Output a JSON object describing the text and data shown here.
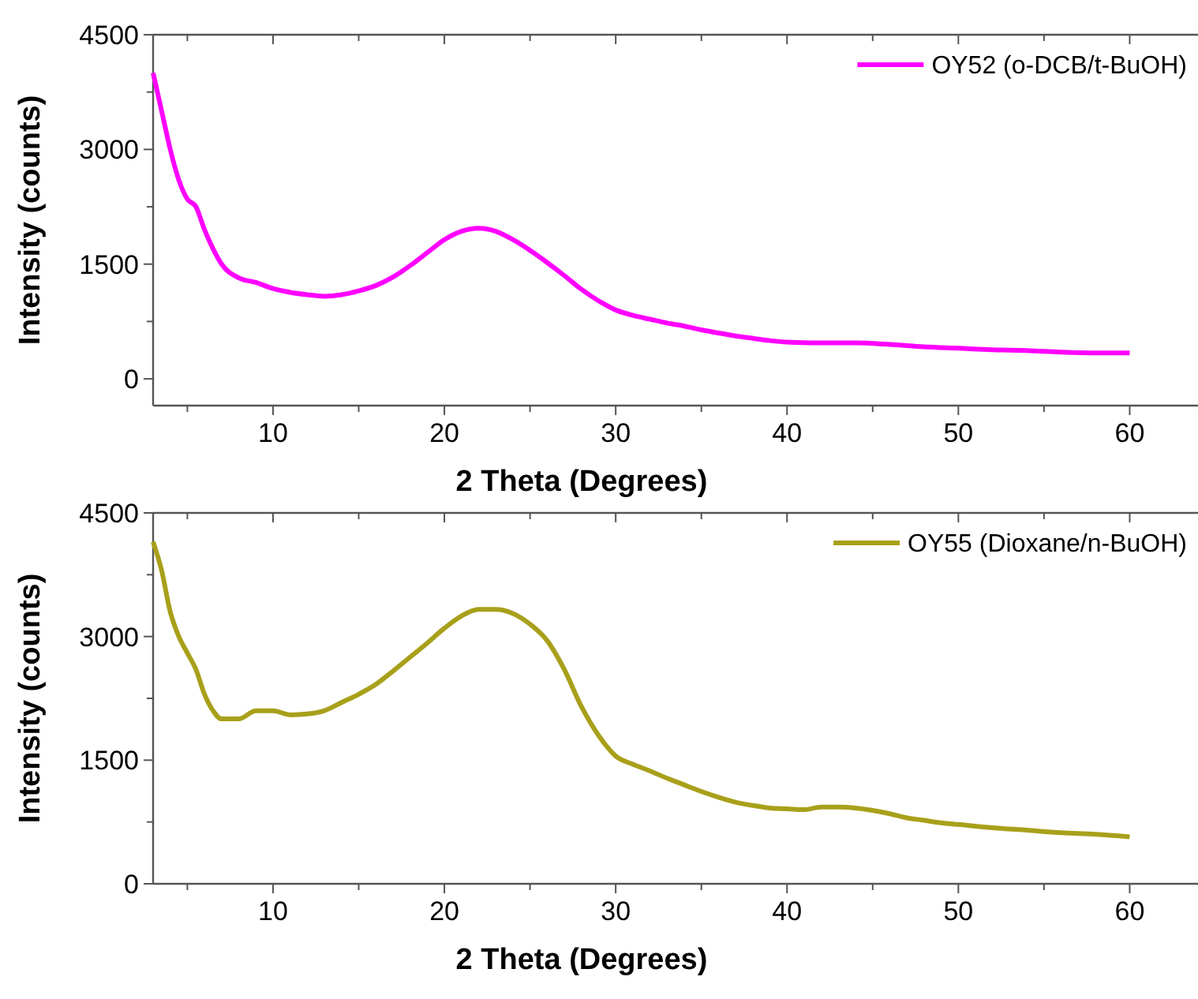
{
  "chart_data": [
    {
      "type": "line",
      "xlabel": "2 Theta (Degrees)",
      "ylabel": "Intensity (counts)",
      "xlim": [
        3,
        65
      ],
      "ylim": [
        -350,
        4500
      ],
      "xticks": [
        {
          "value": 5,
          "label": null
        },
        10,
        {
          "value": 15,
          "label": null
        },
        20,
        {
          "value": 25,
          "label": null
        },
        30,
        {
          "value": 35,
          "label": null
        },
        40,
        {
          "value": 45,
          "label": null
        },
        50,
        {
          "value": 55,
          "label": null
        },
        60
      ],
      "yticks": [
        0,
        {
          "value": 750,
          "label": null
        },
        1500,
        {
          "value": 2250,
          "label": null
        },
        3000,
        {
          "value": 3750,
          "label": null
        },
        4500
      ],
      "legend": "top right",
      "grid": false,
      "marker": "none",
      "line_style": "solid",
      "x": [
        3,
        3.5,
        4,
        4.5,
        5,
        5.5,
        6,
        6.5,
        7,
        8,
        9,
        10,
        11,
        12,
        13,
        14,
        15,
        16,
        17,
        18,
        19,
        20,
        21,
        22,
        23,
        24,
        25,
        26,
        27,
        28,
        29,
        30,
        31,
        32,
        33,
        34,
        35,
        36,
        37,
        38,
        39,
        40,
        42,
        44,
        46,
        48,
        50,
        52,
        54,
        56,
        58,
        60
      ],
      "series": [
        {
          "name": "OY52 (o-DCB/t-BuOH)",
          "color": "#ff00ff",
          "values": [
            4000,
            3500,
            3000,
            2600,
            2350,
            2250,
            1950,
            1700,
            1500,
            1320,
            1260,
            1180,
            1130,
            1100,
            1080,
            1100,
            1150,
            1220,
            1330,
            1480,
            1650,
            1820,
            1930,
            1970,
            1930,
            1820,
            1680,
            1520,
            1350,
            1170,
            1020,
            900,
            830,
            780,
            730,
            690,
            640,
            600,
            560,
            530,
            500,
            480,
            470,
            470,
            450,
            420,
            400,
            380,
            370,
            350,
            340,
            340
          ]
        }
      ]
    },
    {
      "type": "line",
      "xlabel": "2 Theta (Degrees)",
      "ylabel": "Intensity (counts)",
      "xlim": [
        3,
        65
      ],
      "ylim": [
        0,
        4500
      ],
      "xticks": [
        {
          "value": 5,
          "label": null
        },
        10,
        {
          "value": 15,
          "label": null
        },
        20,
        {
          "value": 25,
          "label": null
        },
        30,
        {
          "value": 35,
          "label": null
        },
        40,
        {
          "value": 45,
          "label": null
        },
        50,
        {
          "value": 55,
          "label": null
        },
        60
      ],
      "yticks": [
        0,
        {
          "value": 750,
          "label": null
        },
        1500,
        {
          "value": 2250,
          "label": null
        },
        3000,
        {
          "value": 3750,
          "label": null
        },
        4500
      ],
      "legend": "top right",
      "grid": false,
      "marker": "none",
      "line_style": "solid",
      "x": [
        3,
        3.5,
        4,
        4.5,
        5,
        5.5,
        6,
        6.5,
        7,
        8,
        9,
        10,
        11,
        12,
        13,
        14,
        15,
        16,
        17,
        18,
        19,
        20,
        21,
        22,
        23,
        24,
        25,
        26,
        27,
        28,
        29,
        30,
        31,
        32,
        33,
        34,
        35,
        36,
        37,
        38,
        39,
        40,
        41,
        42,
        43,
        44,
        45,
        46,
        47,
        48,
        49,
        50,
        52,
        54,
        56,
        58,
        60
      ],
      "series": [
        {
          "name": "OY55 (Dioxane/n-BuOH)",
          "color": "#a8a01a",
          "values": [
            4150,
            3800,
            3300,
            3000,
            2800,
            2600,
            2300,
            2100,
            2000,
            2000,
            2100,
            2100,
            2050,
            2060,
            2100,
            2200,
            2300,
            2420,
            2580,
            2750,
            2920,
            3100,
            3250,
            3330,
            3330,
            3280,
            3150,
            2950,
            2600,
            2150,
            1800,
            1550,
            1450,
            1370,
            1280,
            1200,
            1120,
            1050,
            990,
            950,
            920,
            910,
            900,
            930,
            930,
            920,
            890,
            850,
            800,
            770,
            740,
            720,
            680,
            650,
            620,
            600,
            570
          ]
        }
      ]
    }
  ]
}
